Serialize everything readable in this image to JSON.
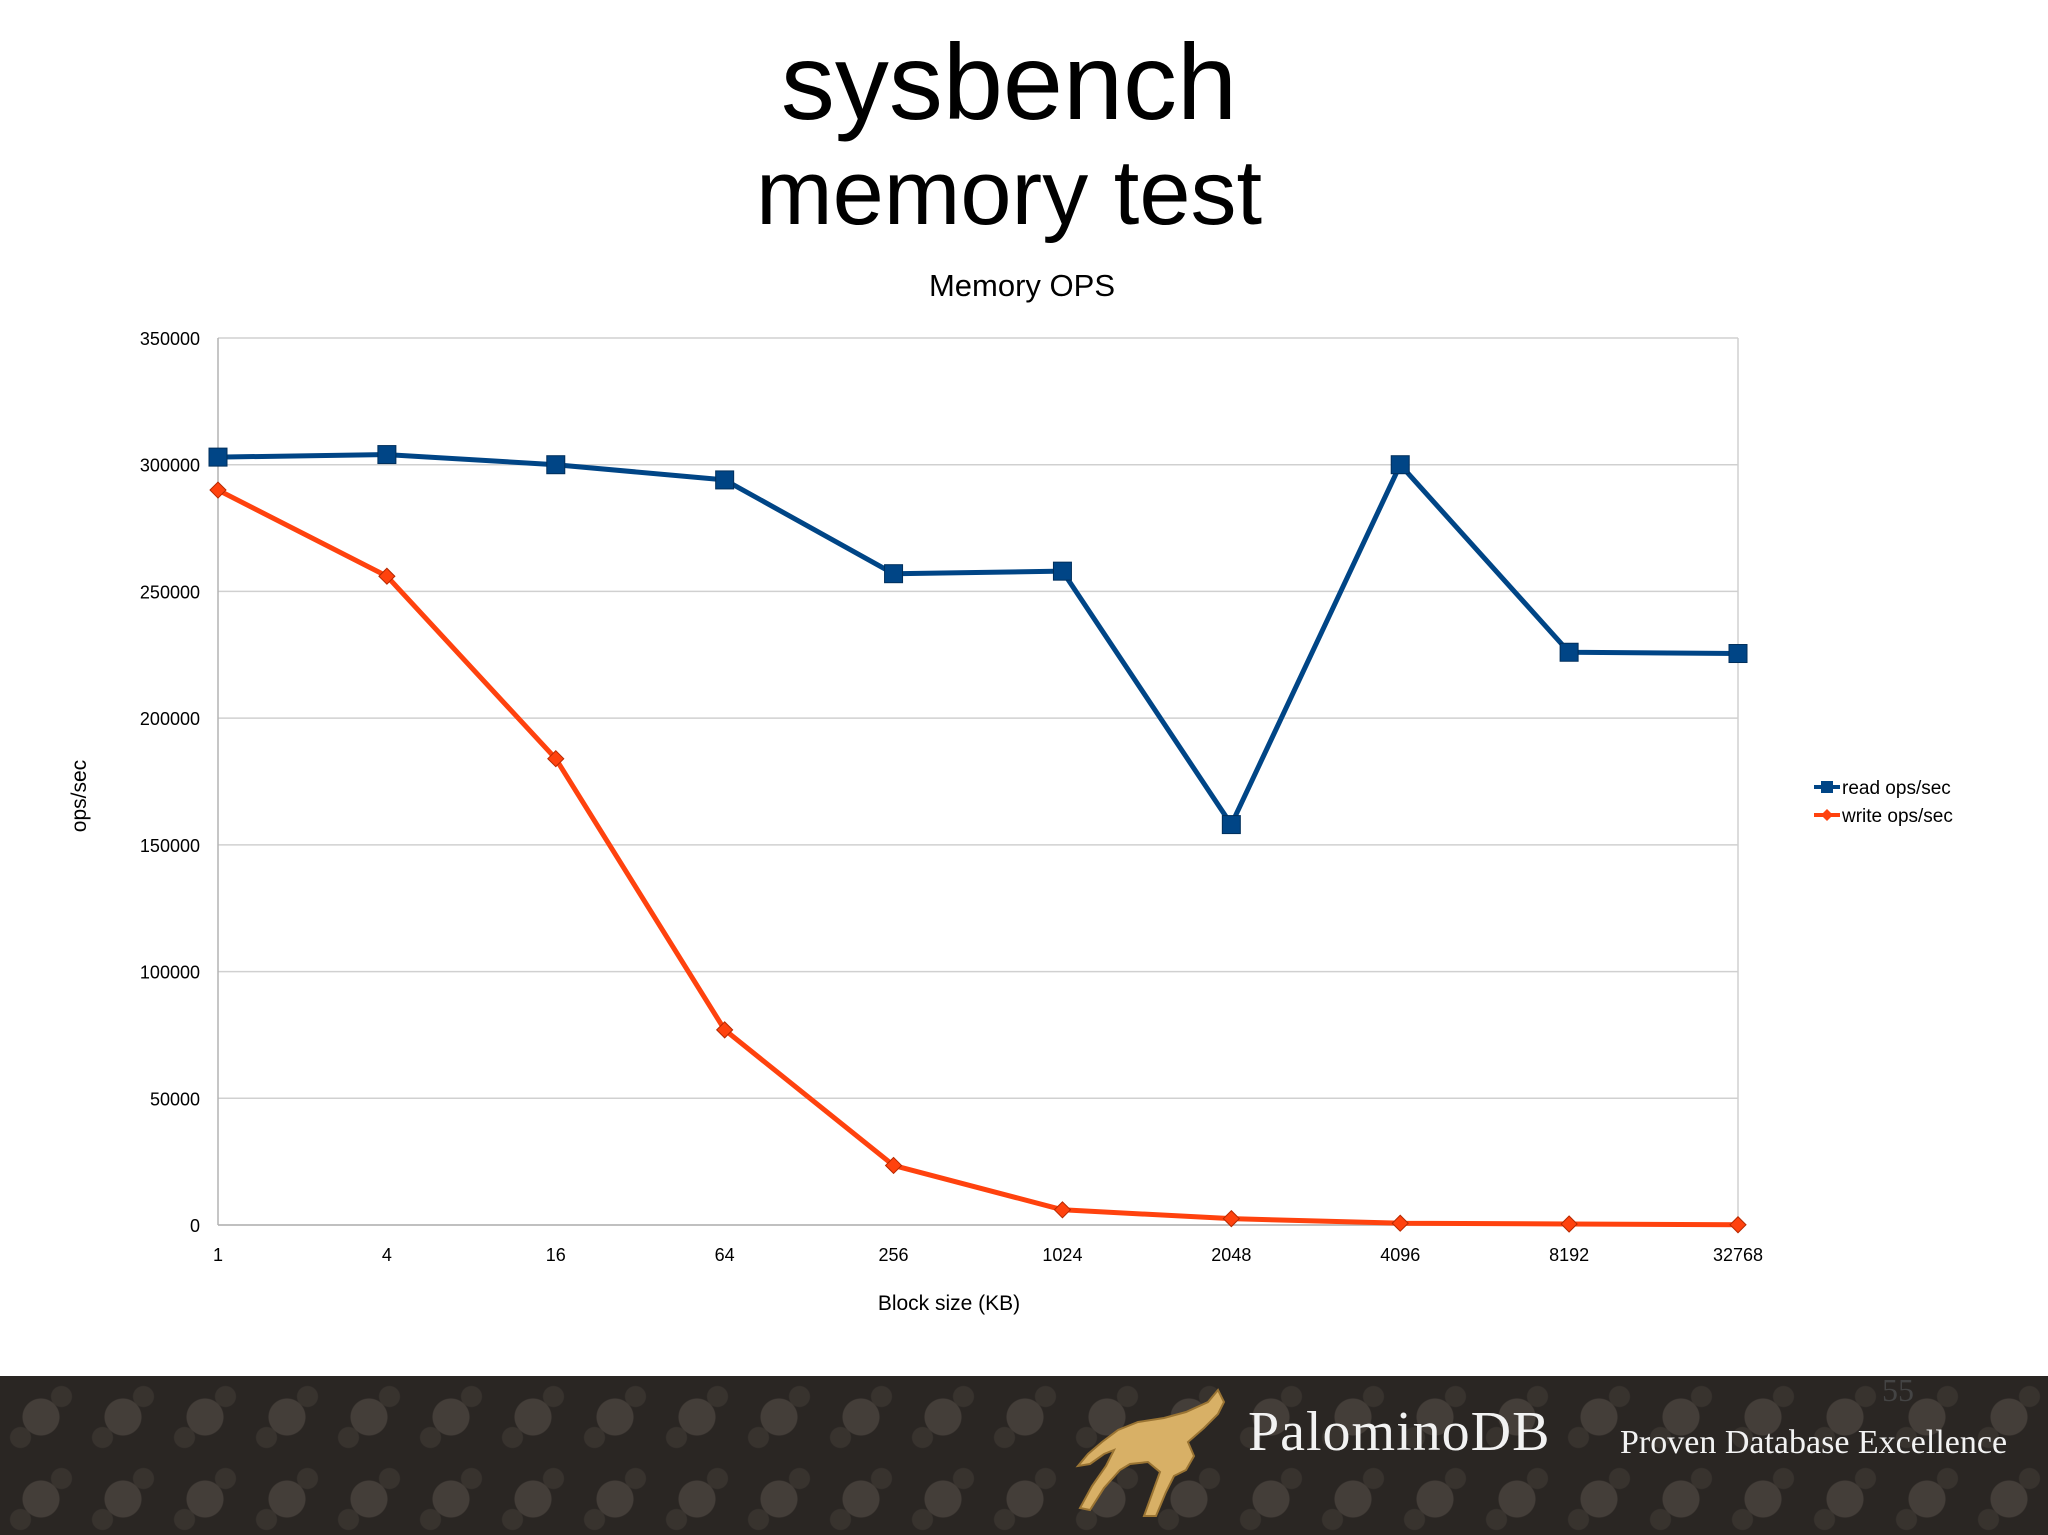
{
  "slide": {
    "title_line1": "sysbench",
    "title_line2": "memory test",
    "page_number": "55"
  },
  "footer": {
    "brand": "PalominoDB",
    "tagline": "Proven Database Excellence"
  },
  "chart_data": {
    "type": "line",
    "title": "Memory OPS",
    "xlabel": "Block size (KB)",
    "ylabel": "ops/sec",
    "categories": [
      "1",
      "4",
      "16",
      "64",
      "256",
      "1024",
      "2048",
      "4096",
      "8192",
      "32768"
    ],
    "yticks": [
      "0",
      "50000",
      "100000",
      "150000",
      "200000",
      "250000",
      "300000",
      "350000"
    ],
    "ylim": [
      0,
      350000
    ],
    "grid": true,
    "legend_position": "right",
    "series": [
      {
        "name": "read ops/sec",
        "color": "#004586",
        "marker": "square",
        "values": [
          303000,
          304000,
          300000,
          294000,
          257000,
          258000,
          158000,
          300000,
          226000,
          225500
        ]
      },
      {
        "name": "write ops/sec",
        "color": "#ff420e",
        "marker": "diamond",
        "values": [
          290000,
          256000,
          184000,
          77000,
          23500,
          6000,
          2500,
          700,
          400,
          100
        ]
      }
    ]
  }
}
